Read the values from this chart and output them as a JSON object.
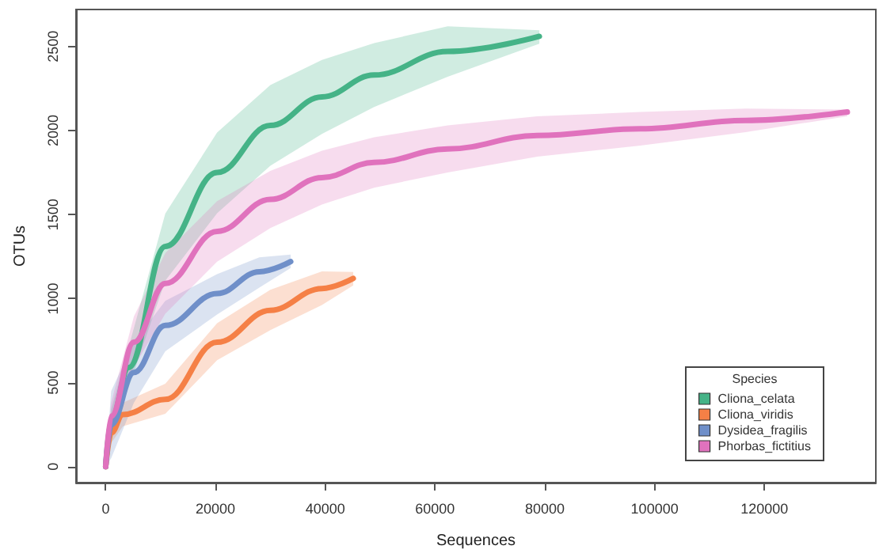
{
  "chart_data": {
    "type": "line",
    "xlabel": "Sequences",
    "ylabel": "OTUs",
    "legend_title": "Species",
    "legend": "bottom right",
    "grid": false,
    "marker": "none",
    "line_style": "solid",
    "xlim": [
      -5400,
      140300
    ],
    "ylim": [
      -95,
      2720
    ],
    "xticks": [
      0,
      20000,
      40000,
      60000,
      80000,
      100000,
      120000
    ],
    "yticks": [
      0,
      500,
      1000,
      1500,
      2000,
      2500
    ],
    "series": [
      {
        "name": "Cliona_celata",
        "color": "#45b387",
        "x": [
          0,
          1000,
          4200,
          10860,
          20300,
          30000,
          39400,
          48900,
          62300,
          79000
        ],
        "values": [
          0,
          280,
          590,
          1310,
          1750,
          2030,
          2200,
          2330,
          2470,
          2560
        ],
        "lower": [
          0,
          220,
          472,
          1106,
          1508,
          1790,
          1980,
          2140,
          2320,
          2516
        ],
        "upper": [
          0,
          340,
          712,
          1506,
          1988,
          2270,
          2420,
          2520,
          2620,
          2596
        ]
      },
      {
        "name": "Cliona_viridis",
        "color": "#f58046",
        "x": [
          0,
          1000,
          3140,
          10860,
          20300,
          30000,
          39400,
          45100
        ],
        "values": [
          0,
          200,
          310,
          400,
          740,
          930,
          1060,
          1120
        ],
        "lower": [
          0,
          140,
          240,
          314,
          633,
          812,
          962,
          1078
        ],
        "upper": [
          0,
          260,
          380,
          494,
          853,
          1052,
          1162,
          1158
        ]
      },
      {
        "name": "Dysidea_fragilis",
        "color": "#6f8fc9",
        "x": [
          0,
          1000,
          5140,
          10860,
          20300,
          28000,
          33700
        ],
        "values": [
          0,
          250,
          560,
          840,
          1030,
          1160,
          1220
        ],
        "lower": [
          0,
          50,
          380,
          687,
          905,
          1065,
          1182
        ],
        "upper": [
          0,
          450,
          740,
          987,
          1145,
          1245,
          1262
        ]
      },
      {
        "name": "Phorbas_fictitius",
        "color": "#e072bd",
        "x": [
          0,
          1000,
          5140,
          10860,
          20300,
          30000,
          39400,
          48900,
          62300,
          78600,
          97400,
          116600,
          135100
        ],
        "values": [
          0,
          300,
          740,
          1090,
          1400,
          1590,
          1720,
          1810,
          1890,
          1970,
          2010,
          2060,
          2110
        ],
        "lower": [
          0,
          220,
          593,
          910,
          1220,
          1420,
          1560,
          1660,
          1750,
          1845,
          1910,
          1990,
          2085
        ],
        "upper": [
          0,
          380,
          893,
          1270,
          1580,
          1760,
          1880,
          1960,
          2030,
          2085,
          2110,
          2130,
          2125
        ]
      }
    ]
  }
}
